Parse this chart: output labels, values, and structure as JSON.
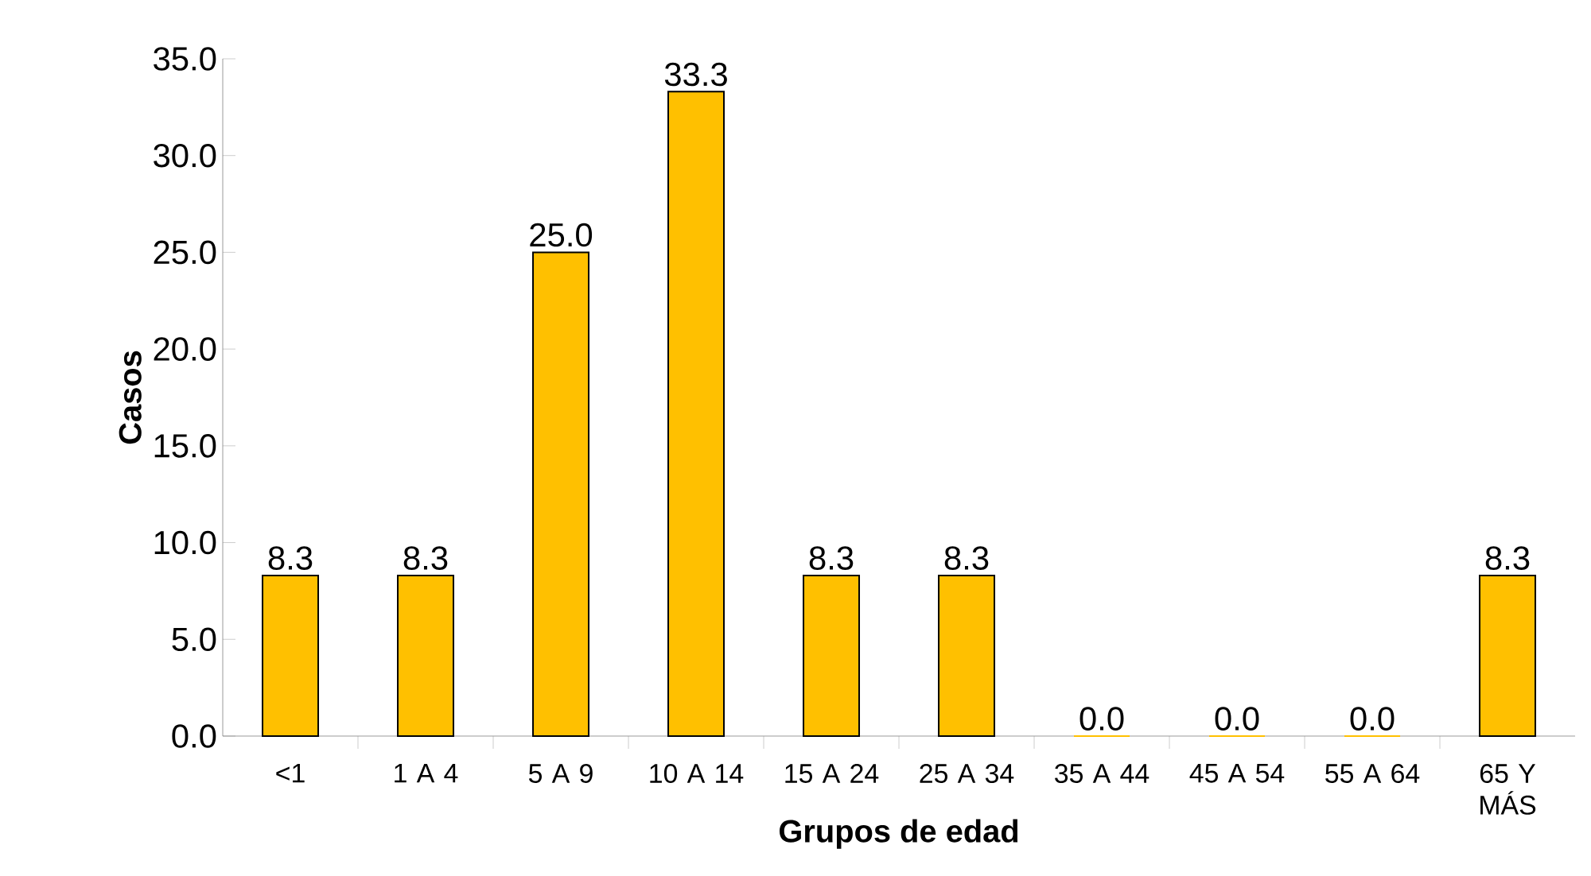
{
  "chart_data": {
    "type": "bar",
    "categories": [
      "<1",
      "1 A 4",
      "5 A 9",
      "10 A 14",
      "15 A 24",
      "25 A 34",
      "35 A 44",
      "45 A 54",
      "55 A 64",
      "65 Y MÁS"
    ],
    "values": [
      8.3,
      8.3,
      25.0,
      33.3,
      8.3,
      8.3,
      0.0,
      0.0,
      0.0,
      8.3
    ],
    "value_labels": [
      "8.3",
      "8.3",
      "25.0",
      "33.3",
      "8.3",
      "8.3",
      "0.0",
      "0.0",
      "0.0",
      "8.3"
    ],
    "color": "#ffc000",
    "xlabel": "Grupos de edad",
    "ylabel": "Casos",
    "ylim": [
      0,
      35
    ],
    "yticks": [
      {
        "value": 0,
        "label": "0.0"
      },
      {
        "value": 5,
        "label": "5.0"
      },
      {
        "value": 10,
        "label": "10.0"
      },
      {
        "value": 15,
        "label": "15.0"
      },
      {
        "value": 20,
        "label": "20.0"
      },
      {
        "value": 25,
        "label": "25.0"
      },
      {
        "value": 30,
        "label": "30.0"
      },
      {
        "value": 35,
        "label": "35.0"
      }
    ],
    "grid": false
  }
}
